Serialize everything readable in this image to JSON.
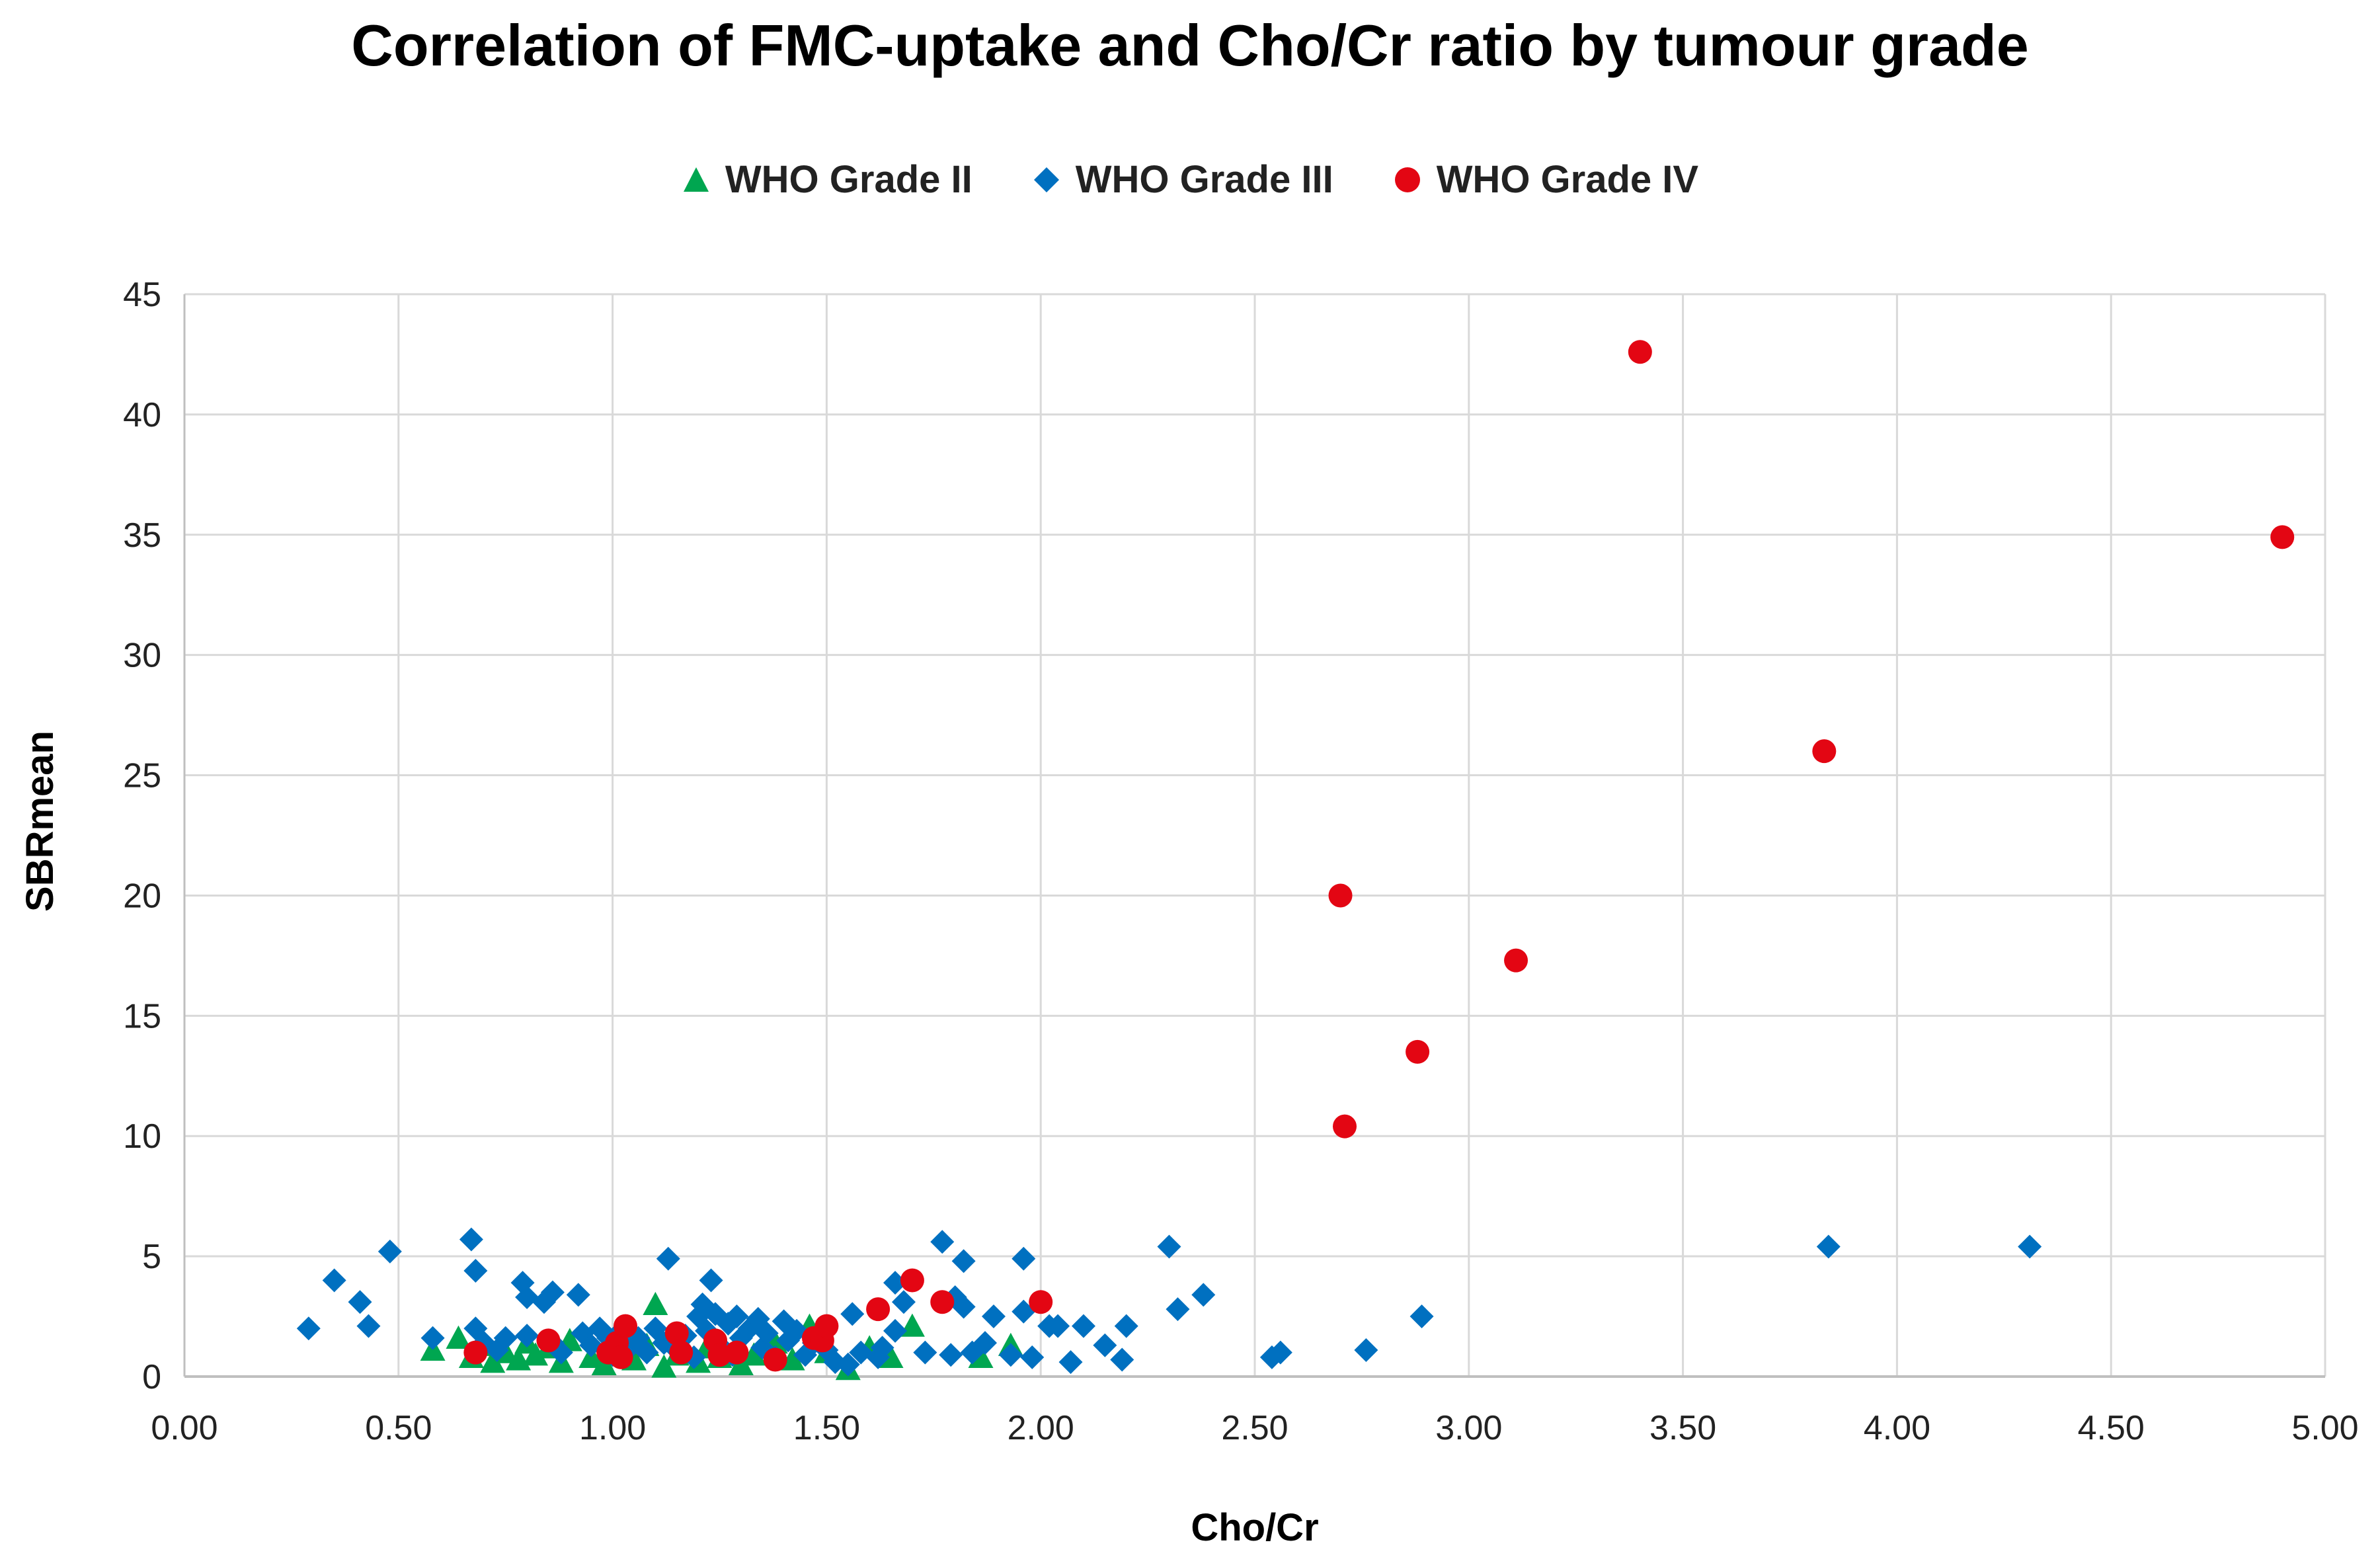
{
  "chart_data": {
    "type": "scatter",
    "title": "Correlation of FMC-uptake and Cho/Cr ratio by tumour grade",
    "xlabel": "Cho/Cr",
    "ylabel": "SBRmean",
    "xlim": [
      0,
      5
    ],
    "ylim": [
      0,
      45
    ],
    "x_ticks": [
      "0.00",
      "0.50",
      "1.00",
      "1.50",
      "2.00",
      "2.50",
      "3.00",
      "3.50",
      "4.00",
      "4.50",
      "5.00"
    ],
    "y_ticks": [
      "0",
      "5",
      "10",
      "15",
      "20",
      "25",
      "30",
      "35",
      "40",
      "45"
    ],
    "grid": true,
    "legend_position": "top-center",
    "series": [
      {
        "name": "WHO Grade II",
        "marker": "triangle",
        "color": "#00a650",
        "points": [
          [
            0.58,
            1.1
          ],
          [
            0.64,
            1.6
          ],
          [
            0.67,
            0.8
          ],
          [
            0.7,
            1.3
          ],
          [
            0.72,
            0.6
          ],
          [
            0.75,
            1.0
          ],
          [
            0.78,
            0.7
          ],
          [
            0.8,
            1.4
          ],
          [
            0.82,
            0.9
          ],
          [
            0.85,
            1.2
          ],
          [
            0.88,
            0.6
          ],
          [
            0.9,
            1.5
          ],
          [
            0.95,
            0.8
          ],
          [
            0.98,
            0.5
          ],
          [
            1.02,
            1.1
          ],
          [
            1.05,
            0.7
          ],
          [
            1.08,
            1.3
          ],
          [
            1.1,
            3.0
          ],
          [
            1.12,
            0.4
          ],
          [
            1.15,
            0.9
          ],
          [
            1.2,
            0.6
          ],
          [
            1.22,
            1.2
          ],
          [
            1.25,
            0.8
          ],
          [
            1.3,
            0.5
          ],
          [
            1.33,
            0.9
          ],
          [
            1.38,
            1.4
          ],
          [
            1.42,
            0.7
          ],
          [
            1.46,
            2.1
          ],
          [
            1.5,
            1.0
          ],
          [
            1.55,
            0.3
          ],
          [
            1.6,
            1.2
          ],
          [
            1.65,
            0.8
          ],
          [
            1.7,
            2.1
          ],
          [
            1.86,
            0.8
          ],
          [
            1.93,
            1.3
          ]
        ]
      },
      {
        "name": "WHO Grade III",
        "marker": "diamond",
        "color": "#0070c0",
        "points": [
          [
            0.29,
            2.0
          ],
          [
            0.35,
            4.0
          ],
          [
            0.41,
            3.1
          ],
          [
            0.43,
            2.1
          ],
          [
            0.48,
            5.2
          ],
          [
            0.58,
            1.6
          ],
          [
            0.67,
            5.7
          ],
          [
            0.68,
            4.4
          ],
          [
            0.68,
            2.0
          ],
          [
            0.7,
            1.4
          ],
          [
            0.73,
            1.1
          ],
          [
            0.75,
            1.6
          ],
          [
            0.79,
            3.9
          ],
          [
            0.8,
            3.3
          ],
          [
            0.8,
            1.7
          ],
          [
            0.84,
            3.1
          ],
          [
            0.86,
            3.5
          ],
          [
            0.86,
            1.4
          ],
          [
            0.88,
            1.0
          ],
          [
            0.92,
            3.4
          ],
          [
            0.93,
            1.8
          ],
          [
            0.95,
            1.3
          ],
          [
            0.97,
            2.0
          ],
          [
            0.99,
            1.6
          ],
          [
            1.0,
            0.9
          ],
          [
            1.02,
            1.9
          ],
          [
            1.04,
            1.2
          ],
          [
            1.06,
            1.6
          ],
          [
            1.08,
            1.0
          ],
          [
            1.1,
            2.0
          ],
          [
            1.12,
            1.4
          ],
          [
            1.13,
            4.9
          ],
          [
            1.15,
            1.1
          ],
          [
            1.17,
            1.7
          ],
          [
            1.19,
            0.8
          ],
          [
            1.2,
            2.5
          ],
          [
            1.21,
            3.0
          ],
          [
            1.22,
            1.9
          ],
          [
            1.23,
            4.0
          ],
          [
            1.24,
            2.6
          ],
          [
            1.25,
            1.3
          ],
          [
            1.27,
            2.2
          ],
          [
            1.28,
            0.9
          ],
          [
            1.29,
            2.5
          ],
          [
            1.3,
            1.6
          ],
          [
            1.32,
            2.0
          ],
          [
            1.34,
            2.4
          ],
          [
            1.35,
            1.2
          ],
          [
            1.36,
            1.8
          ],
          [
            1.38,
            0.8
          ],
          [
            1.4,
            2.3
          ],
          [
            1.41,
            1.5
          ],
          [
            1.43,
            1.9
          ],
          [
            1.45,
            0.9
          ],
          [
            1.47,
            1.4
          ],
          [
            1.5,
            1.1
          ],
          [
            1.52,
            0.6
          ],
          [
            1.55,
            0.5
          ],
          [
            1.56,
            2.6
          ],
          [
            1.58,
            1.0
          ],
          [
            1.62,
            0.8
          ],
          [
            1.63,
            1.2
          ],
          [
            1.66,
            3.9
          ],
          [
            1.66,
            1.9
          ],
          [
            1.68,
            3.1
          ],
          [
            1.73,
            1.0
          ],
          [
            1.77,
            5.6
          ],
          [
            1.79,
            0.9
          ],
          [
            1.8,
            3.3
          ],
          [
            1.82,
            2.9
          ],
          [
            1.82,
            4.8
          ],
          [
            1.84,
            1.0
          ],
          [
            1.87,
            1.4
          ],
          [
            1.89,
            2.5
          ],
          [
            1.93,
            0.9
          ],
          [
            1.96,
            2.7
          ],
          [
            1.96,
            4.9
          ],
          [
            1.98,
            0.8
          ],
          [
            2.02,
            2.1
          ],
          [
            2.04,
            2.1
          ],
          [
            2.07,
            0.6
          ],
          [
            2.1,
            2.1
          ],
          [
            2.15,
            1.3
          ],
          [
            2.19,
            0.7
          ],
          [
            2.2,
            2.1
          ],
          [
            2.3,
            5.4
          ],
          [
            2.32,
            2.8
          ],
          [
            2.38,
            3.4
          ],
          [
            2.54,
            0.8
          ],
          [
            2.56,
            1.0
          ],
          [
            2.76,
            1.1
          ],
          [
            2.89,
            2.5
          ],
          [
            3.84,
            5.4
          ],
          [
            4.31,
            5.4
          ]
        ]
      },
      {
        "name": "WHO Grade IV",
        "marker": "circle",
        "color": "#e30613",
        "points": [
          [
            0.68,
            1.0
          ],
          [
            0.85,
            1.5
          ],
          [
            0.99,
            1.0
          ],
          [
            1.01,
            1.4
          ],
          [
            1.02,
            0.8
          ],
          [
            1.03,
            2.1
          ],
          [
            1.15,
            1.8
          ],
          [
            1.16,
            1.0
          ],
          [
            1.24,
            1.5
          ],
          [
            1.25,
            0.9
          ],
          [
            1.29,
            1.0
          ],
          [
            1.38,
            0.7
          ],
          [
            1.47,
            1.6
          ],
          [
            1.49,
            1.5
          ],
          [
            1.5,
            2.1
          ],
          [
            1.62,
            2.8
          ],
          [
            1.7,
            4.0
          ],
          [
            1.77,
            3.1
          ],
          [
            2.0,
            3.1
          ],
          [
            2.7,
            20.0
          ],
          [
            2.71,
            10.4
          ],
          [
            2.88,
            13.5
          ],
          [
            3.11,
            17.3
          ],
          [
            3.4,
            42.6
          ],
          [
            3.83,
            26.0
          ],
          [
            4.9,
            34.9
          ]
        ]
      }
    ]
  }
}
